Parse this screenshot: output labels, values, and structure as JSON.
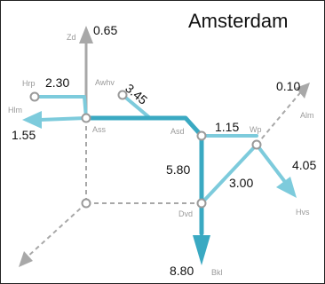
{
  "map": {
    "title": "Amsterdam",
    "colors": {
      "line_light": "#7dcbdc",
      "line_dark": "#3aa9c2",
      "dashed": "#a8a8a8",
      "station_fill": "#ffffff",
      "station_stroke": "#9a9a9a"
    },
    "stations": {
      "zd": "Zd",
      "hrp": "Hrp",
      "awhv": "Awhv",
      "hlm": "Hlm",
      "ass": "Ass",
      "asd": "Asd",
      "wp": "Wp",
      "alm": "Alm",
      "dvd": "Dvd",
      "hvs": "Hvs",
      "bkl": "Bkl"
    },
    "values": {
      "zd": "0.65",
      "hrp": "2.30",
      "awhv": "3.45",
      "alm": "0.10",
      "hlm": "1.55",
      "asd_wp": "1.15",
      "hvs": "4.05",
      "asd_dvd": "5.80",
      "dvd_wp": "3.00",
      "bkl": "8.80"
    }
  }
}
